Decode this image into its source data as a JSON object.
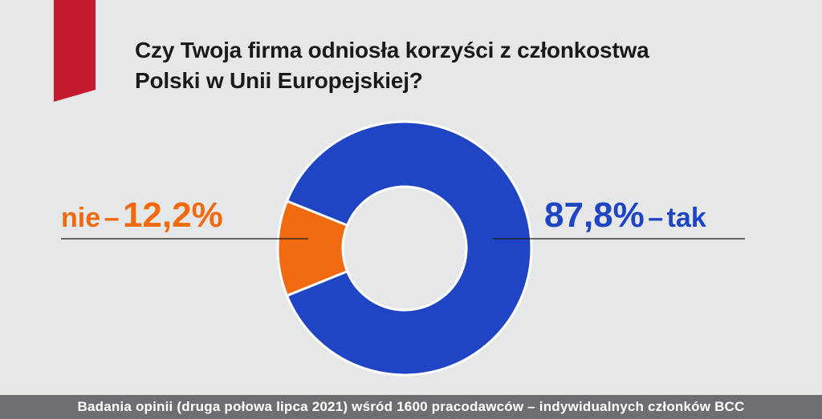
{
  "title_lines": [
    "Czy Twoja firma odniosła korzyści z członkostwa",
    "Polski w Unii Europejskiej?"
  ],
  "chart_data": {
    "type": "pie",
    "title": "Czy Twoja firma odniosła korzyści z członkostwa Polski w Unii Europejskiej?",
    "donut": true,
    "slices": [
      {
        "category": "tak",
        "value": 87.8,
        "value_label": "87,8%",
        "color": "#1f45c4"
      },
      {
        "category": "nie",
        "value": 12.2,
        "value_label": "12,2%",
        "color": "#f26a10"
      }
    ]
  },
  "labels": {
    "left": {
      "cat": "nie",
      "dash": "–",
      "val": "12,2%"
    },
    "right": {
      "val": "87,8%",
      "dash": "–",
      "cat": "tak"
    }
  },
  "footer": "Badania opinii (druga połowa lipca 2021) wśród 1600 pracodawców – indywidualnych członków BCC",
  "colors": {
    "ribbon": "#c4192f",
    "background": "#e6e7e9",
    "footer_bg": "#6d6e71"
  }
}
